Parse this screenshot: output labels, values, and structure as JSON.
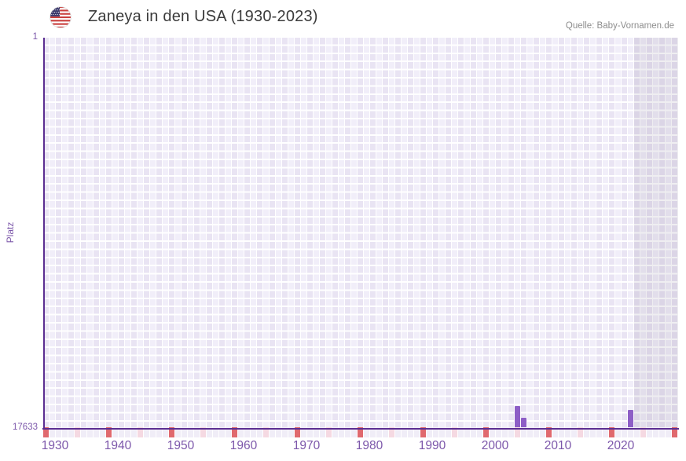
{
  "header": {
    "title": "Zaneya in den USA (1930-2023)",
    "source": "Quelle: Baby-Vornamen.de",
    "flag_icon": "us-flag-icon"
  },
  "chart_data": {
    "type": "bar",
    "title": "Zaneya in den USA (1930-2023)",
    "xlabel": "",
    "ylabel": "Platz",
    "x_axis": {
      "year_start": 1930,
      "year_end_data": 2023,
      "grid_year_end": 2030,
      "no_data_shaded_from": 2024,
      "major_tick_every": 10,
      "minor_tick_every": 5,
      "tick_labels": [
        "1930",
        "1940",
        "1950",
        "1960",
        "1970",
        "1980",
        "1990",
        "2000",
        "2010",
        "2020"
      ]
    },
    "y_axis": {
      "top_tick": "1",
      "bottom_tick": "17633",
      "min_rank": 1,
      "max_rank": 17633,
      "inverted": true,
      "grid": true
    },
    "bars": [
      {
        "year": 2005,
        "rank": 16650
      },
      {
        "year": 2006,
        "rank": 17180
      },
      {
        "year": 2023,
        "rank": 16840
      }
    ],
    "legend": null
  },
  "colors": {
    "bar": "#8d5ec6",
    "axis_line": "#5c2e91",
    "axis_label": "#7c57aa",
    "tick_major": "#e0696e",
    "tick_minor": "#f5d9e2",
    "tick_plain": "#f0edf7",
    "grid_cell_dark": "#e9e4f3",
    "grid_cell_light": "#f1eef9",
    "no_data_overlay": "rgba(98,90,120,0.10)",
    "title_text": "#3b3b3b",
    "source_text": "#8d8d8d",
    "flag_red": "#c9403e",
    "flag_blue": "#3b3a6d"
  }
}
